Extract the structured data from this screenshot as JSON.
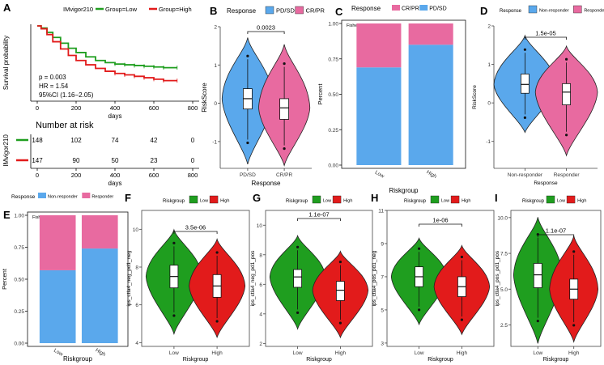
{
  "colors": {
    "green": "#1f9e1f",
    "red": "#e21b1b",
    "blue": "#5aa8ec",
    "pink": "#e86aa0",
    "ink": "#000000",
    "gray": "#333333"
  },
  "chart_data": [
    {
      "id": "A",
      "type": "line",
      "panel_label": "A",
      "legend_title": "IMvigor210",
      "legend": [
        "Group=Low",
        "Group=High"
      ],
      "ylabel": "Survival probability",
      "xlabel": "days",
      "xlim": [
        0,
        800
      ],
      "ylim": [
        0,
        1
      ],
      "xticks": [
        "0",
        "200",
        "400",
        "600",
        "800"
      ],
      "yticks": [
        "0.00",
        "0.25",
        "0.50",
        "0.75",
        "1.00"
      ],
      "series": [
        {
          "name": "Group=Low",
          "color": "#1f9e1f",
          "x": [
            0,
            20,
            50,
            80,
            120,
            160,
            200,
            250,
            300,
            350,
            400,
            450,
            500,
            550,
            600,
            650,
            720
          ],
          "y": [
            1,
            0.97,
            0.91,
            0.84,
            0.76,
            0.69,
            0.63,
            0.57,
            0.52,
            0.49,
            0.47,
            0.46,
            0.45,
            0.44,
            0.43,
            0.42,
            0.42
          ]
        },
        {
          "name": "Group=High",
          "color": "#e21b1b",
          "x": [
            0,
            20,
            50,
            80,
            120,
            160,
            200,
            250,
            300,
            350,
            400,
            450,
            500,
            550,
            600,
            650,
            720
          ],
          "y": [
            1,
            0.96,
            0.88,
            0.78,
            0.68,
            0.59,
            0.52,
            0.46,
            0.41,
            0.37,
            0.34,
            0.32,
            0.3,
            0.28,
            0.26,
            0.24,
            0.24
          ]
        }
      ],
      "annotations": [
        "p = 0.003",
        "HR = 1.54",
        "95%CI (1.16−2.05)"
      ],
      "risk_table": {
        "title": "Number at risk",
        "ylabel": "IMvigor210",
        "xlabel": "days",
        "xticks": [
          "0",
          "200",
          "400",
          "600",
          "800"
        ],
        "rows": [
          {
            "group": "Low",
            "color": "#1f9e1f",
            "counts": [
              "148",
              "102",
              "74",
              "42",
              "0"
            ]
          },
          {
            "group": "High",
            "color": "#e21b1b",
            "counts": [
              "147",
              "90",
              "50",
              "23",
              "0"
            ]
          }
        ]
      }
    },
    {
      "id": "B",
      "type": "violin",
      "panel_label": "B",
      "legend_title": "Response",
      "legend": [
        "PD/SD",
        "CR/PR"
      ],
      "ylabel": "RiskScore",
      "xlabel": "Response",
      "categories": [
        "PD/SD",
        "CR/PR"
      ],
      "ylim": [
        -1.7,
        2.0
      ],
      "yticks": [
        -1,
        0,
        1,
        2
      ],
      "colors": [
        "#5aa8ec",
        "#e86aa0"
      ],
      "pvalue": "0.0023",
      "box": [
        {
          "q1": -0.15,
          "median": 0.12,
          "q3": 0.38,
          "min": -0.95,
          "max": 1.15
        },
        {
          "q1": -0.42,
          "median": -0.12,
          "q3": 0.12,
          "min": -1.1,
          "max": 0.95
        }
      ]
    },
    {
      "id": "C",
      "type": "bar",
      "panel_label": "C",
      "legend_title": "Response",
      "legend": [
        "CR/PR",
        "PD/SD"
      ],
      "ylabel": "Percent",
      "xlabel": "Riskgroup",
      "categories": [
        "Low",
        "High"
      ],
      "yticks": [
        "0.00",
        "0.25",
        "0.50",
        "0.75",
        "1.00"
      ],
      "series": [
        {
          "name": "PD/SD",
          "color": "#5aa8ec",
          "values": [
            0.69,
            0.85
          ]
        },
        {
          "name": "CR/PR",
          "color": "#e86aa0",
          "values": [
            0.31,
            0.15
          ]
        }
      ],
      "test_label": "Fisher.p=0"
    },
    {
      "id": "D",
      "type": "violin",
      "panel_label": "D",
      "legend_title": "Response",
      "legend": [
        "Non-responder",
        "Responder"
      ],
      "ylabel": "RiskScore",
      "xlabel": "Response",
      "categories": [
        "Non-responder",
        "Responder"
      ],
      "ylim": [
        -1.7,
        2.0
      ],
      "yticks": [
        -1,
        0,
        1,
        2
      ],
      "colors": [
        "#5aa8ec",
        "#e86aa0"
      ],
      "pvalue": "1.5e-05",
      "box": [
        {
          "q1": 0.25,
          "median": 0.48,
          "q3": 0.75,
          "min": -0.3,
          "max": 1.3
        },
        {
          "q1": -0.05,
          "median": 0.28,
          "q3": 0.5,
          "min": -0.75,
          "max": 1.05
        }
      ]
    },
    {
      "id": "E",
      "type": "bar",
      "panel_label": "E",
      "legend_title": "Response",
      "legend": [
        "Non-responder",
        "Responder"
      ],
      "ylabel": "Percent",
      "xlabel": "Riskgroup",
      "categories": [
        "Low",
        "High"
      ],
      "yticks": [
        "0.00",
        "0.25",
        "0.50",
        "0.75",
        "1.00"
      ],
      "series": [
        {
          "name": "Non-responder",
          "color": "#5aa8ec",
          "values": [
            0.57,
            0.74
          ]
        },
        {
          "name": "Responder",
          "color": "#e86aa0",
          "values": [
            0.43,
            0.26
          ]
        }
      ],
      "test_label": "Fisher.p=0.0014"
    },
    {
      "id": "F",
      "type": "violin",
      "panel_label": "F",
      "legend_title": "Riskgroup",
      "legend": [
        "Low",
        "High"
      ],
      "ylabel": "ips_ctla4_neg_pd1_neg",
      "xlabel": "Riskgroup",
      "categories": [
        "Low",
        "High"
      ],
      "ylim": [
        3.8,
        11.0
      ],
      "yticks": [
        4,
        6,
        8,
        10
      ],
      "colors": [
        "#1f9e1f",
        "#e21b1b"
      ],
      "pvalue": "3.5e-06",
      "box": [
        {
          "q1": 6.9,
          "median": 7.5,
          "q3": 8.1,
          "min": 5.6,
          "max": 9.1
        },
        {
          "q1": 6.4,
          "median": 7.0,
          "q3": 7.6,
          "min": 5.3,
          "max": 8.6
        }
      ]
    },
    {
      "id": "G",
      "type": "violin",
      "panel_label": "G",
      "legend_title": "Riskgroup",
      "legend": [
        "Low",
        "High"
      ],
      "ylabel": "ips_ctla4_neg_pd1_pos",
      "xlabel": "Riskgroup",
      "categories": [
        "Low",
        "High"
      ],
      "ylim": [
        1.8,
        11.0
      ],
      "yticks": [
        2,
        4,
        6,
        8,
        10
      ],
      "colors": [
        "#1f9e1f",
        "#e21b1b"
      ],
      "pvalue": "1.1e-07",
      "box": [
        {
          "q1": 5.8,
          "median": 6.5,
          "q3": 7.0,
          "min": 4.3,
          "max": 8.3
        },
        {
          "q1": 4.9,
          "median": 5.6,
          "q3": 6.2,
          "min": 3.6,
          "max": 7.3
        }
      ]
    },
    {
      "id": "H",
      "type": "violin",
      "panel_label": "H",
      "legend_title": "Riskgroup",
      "legend": [
        "Low",
        "High"
      ],
      "ylabel": "ips_ctla4_pos_pd1_neg",
      "xlabel": "Riskgroup",
      "categories": [
        "Low",
        "High"
      ],
      "ylim": [
        2.8,
        11.0
      ],
      "yticks": [
        3,
        5,
        7,
        9,
        11
      ],
      "colors": [
        "#1f9e1f",
        "#e21b1b"
      ],
      "pvalue": "1e-06",
      "box": [
        {
          "q1": 6.4,
          "median": 7.0,
          "q3": 7.6,
          "min": 5.2,
          "max": 8.5
        },
        {
          "q1": 5.8,
          "median": 6.4,
          "q3": 7.0,
          "min": 4.6,
          "max": 8.0
        }
      ]
    },
    {
      "id": "I",
      "type": "violin",
      "panel_label": "I",
      "legend_title": "Riskgroup",
      "legend": [
        "Low",
        "High"
      ],
      "ylabel": "ips_ctla4_pos_pd1_pos",
      "xlabel": "Riskgroup",
      "categories": [
        "Low",
        "High"
      ],
      "ylim": [
        1.0,
        10.5
      ],
      "yticks": [
        2.5,
        5.0,
        7.5,
        10.0
      ],
      "colors": [
        "#1f9e1f",
        "#e21b1b"
      ],
      "pvalue": "1.1e-07",
      "box": [
        {
          "q1": 5.1,
          "median": 6.0,
          "q3": 6.8,
          "min": 3.0,
          "max": 8.6
        },
        {
          "q1": 4.3,
          "median": 5.0,
          "q3": 5.7,
          "min": 2.7,
          "max": 7.4
        }
      ]
    }
  ]
}
